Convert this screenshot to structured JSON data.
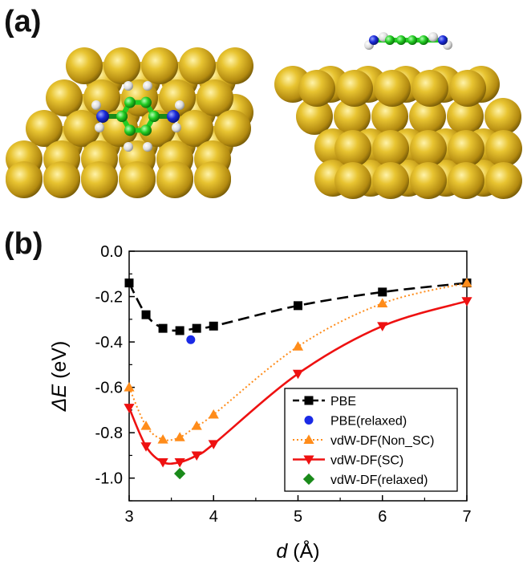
{
  "panels": {
    "a_label": "(a)",
    "b_label": "(b)"
  },
  "figure_a": {
    "description_views": [
      "top view",
      "side view"
    ],
    "colors": {
      "gold": "#d9b21f",
      "carbon": "#22cc22",
      "nitrogen": "#1a2ad8",
      "hydrogen": "#e6e6e6"
    }
  },
  "chart_data": {
    "type": "line",
    "xlabel_italic": "d",
    "xlabel_unit": " (Å)",
    "ylabel_italic": "ΔE",
    "ylabel_unit": " (eV)",
    "xlim": [
      3,
      7
    ],
    "ylim": [
      -1.1,
      0.0
    ],
    "xticks": [
      3,
      4,
      5,
      6,
      7
    ],
    "xticklabels": [
      "3",
      "4",
      "5",
      "6",
      "7"
    ],
    "yticks": [
      0.0,
      -0.2,
      -0.4,
      -0.6,
      -0.8,
      -1.0
    ],
    "yticklabels": [
      "0.0",
      "-0.2",
      "-0.4",
      "-0.6",
      "-0.8",
      "-1.0"
    ],
    "series": [
      {
        "name": "PBE",
        "color": "#000000",
        "marker": "square",
        "line": "dashed",
        "x": [
          3.0,
          3.2,
          3.4,
          3.6,
          3.8,
          4.0,
          5.0,
          6.0,
          7.0
        ],
        "y": [
          -0.14,
          -0.28,
          -0.34,
          -0.35,
          -0.34,
          -0.33,
          -0.24,
          -0.18,
          -0.14
        ]
      },
      {
        "name": "PBE(relaxed)",
        "color": "#1a2ae6",
        "marker": "circle",
        "line": "none",
        "x": [
          3.73
        ],
        "y": [
          -0.39
        ]
      },
      {
        "name": "vdW-DF(Non_SC)",
        "color": "#ff8c1a",
        "marker": "triangle-up",
        "line": "dotted",
        "x": [
          3.0,
          3.2,
          3.4,
          3.6,
          3.8,
          4.0,
          5.0,
          6.0,
          7.0
        ],
        "y": [
          -0.6,
          -0.77,
          -0.83,
          -0.82,
          -0.77,
          -0.72,
          -0.42,
          -0.23,
          -0.14
        ]
      },
      {
        "name": "vdW-DF(SC)",
        "color": "#ee1111",
        "marker": "triangle-down",
        "line": "solid",
        "x": [
          3.0,
          3.2,
          3.4,
          3.6,
          3.8,
          4.0,
          5.0,
          6.0,
          7.0
        ],
        "y": [
          -0.69,
          -0.86,
          -0.93,
          -0.93,
          -0.9,
          -0.85,
          -0.54,
          -0.33,
          -0.22
        ]
      },
      {
        "name": "vdW-DF(relaxed)",
        "color": "#1a8a1a",
        "marker": "diamond",
        "line": "none",
        "x": [
          3.6
        ],
        "y": [
          -0.98
        ]
      }
    ]
  }
}
